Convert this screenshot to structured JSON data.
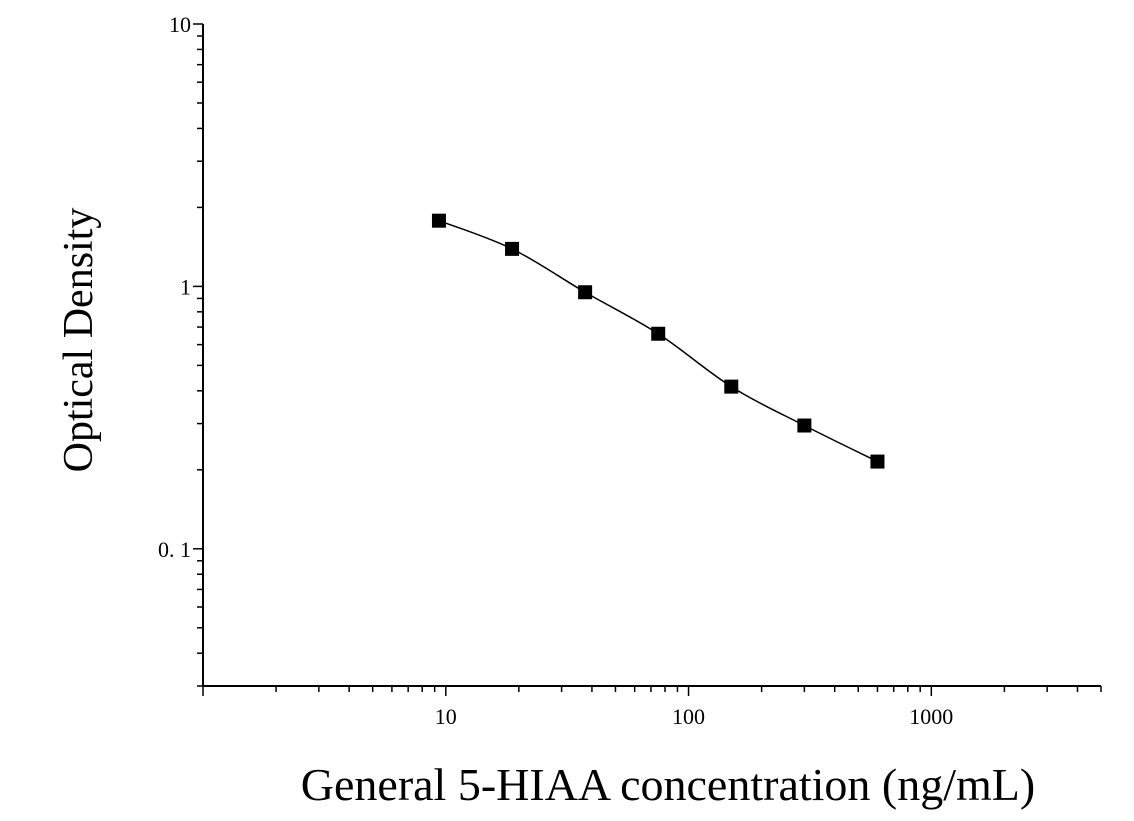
{
  "chart_data": {
    "type": "line",
    "title": "",
    "xlabel": "General 5-HIAA concentration (ng/mL)",
    "ylabel": "Optical Density",
    "x_scale": "log",
    "y_scale": "log",
    "xlim": [
      1,
      5000
    ],
    "ylim": [
      0.03,
      10
    ],
    "x_ticks": [
      {
        "value": 10,
        "label": "10"
      },
      {
        "value": 100,
        "label": "100"
      },
      {
        "value": 1000,
        "label": "1000"
      }
    ],
    "y_ticks": [
      {
        "value": 0.1,
        "label": "0. 1"
      },
      {
        "value": 1,
        "label": "1"
      },
      {
        "value": 10,
        "label": "10"
      }
    ],
    "grid": false,
    "legend": false,
    "series": [
      {
        "marker": "square",
        "color": "#000000",
        "x": [
          9.375,
          18.75,
          37.5,
          75,
          150,
          300,
          600
        ],
        "y": [
          1.78,
          1.39,
          0.95,
          0.66,
          0.415,
          0.295,
          0.215
        ]
      }
    ],
    "fit_curve": {
      "style": "smooth",
      "color": "#000000"
    }
  }
}
